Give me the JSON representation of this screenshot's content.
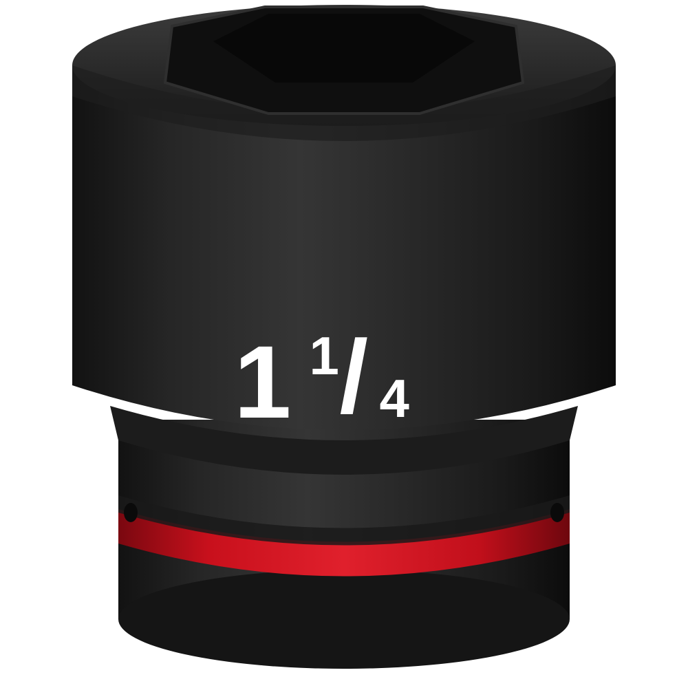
{
  "product": {
    "size_whole": "1",
    "size_numerator": "1",
    "size_slash": "/",
    "size_denominator": "4"
  },
  "colors": {
    "body": "#1f1f1f",
    "body_dark": "#101010",
    "body_highlight": "#3a3a3a",
    "ring": "#d8121f",
    "ring_dark": "#8a0a12",
    "background": "#ffffff"
  }
}
